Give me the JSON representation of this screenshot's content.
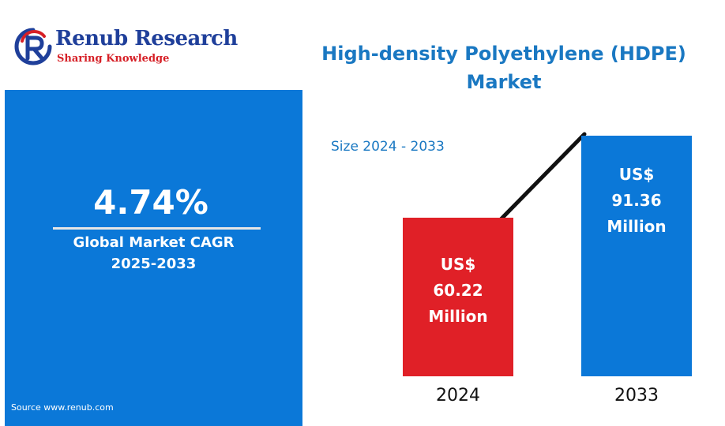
{
  "brand": {
    "name": "Renub Research",
    "tagline": "Sharing Knowledge",
    "colors": {
      "name": "#1f3f9a",
      "tagline": "#d61f26"
    }
  },
  "title": "High-density Polyethylene (HDPE) Market",
  "cagr_panel": {
    "value": "4.74%",
    "label_line1": "Global Market CAGR",
    "label_line2": "2025-2033",
    "source": "Source  www.renub.com",
    "color": "#0b78d8"
  },
  "chart_data": {
    "type": "bar",
    "subtitle": "Size 2024 - 2033",
    "categories": [
      "2024",
      "2033"
    ],
    "values": [
      60.22,
      91.36
    ],
    "bar_labels": [
      [
        "US$",
        "60.22",
        "Million"
      ],
      [
        "US$",
        "91.36",
        "Million"
      ]
    ],
    "colors": [
      "#e02027",
      "#0b78d8"
    ],
    "trend_line": true,
    "grid": false
  }
}
